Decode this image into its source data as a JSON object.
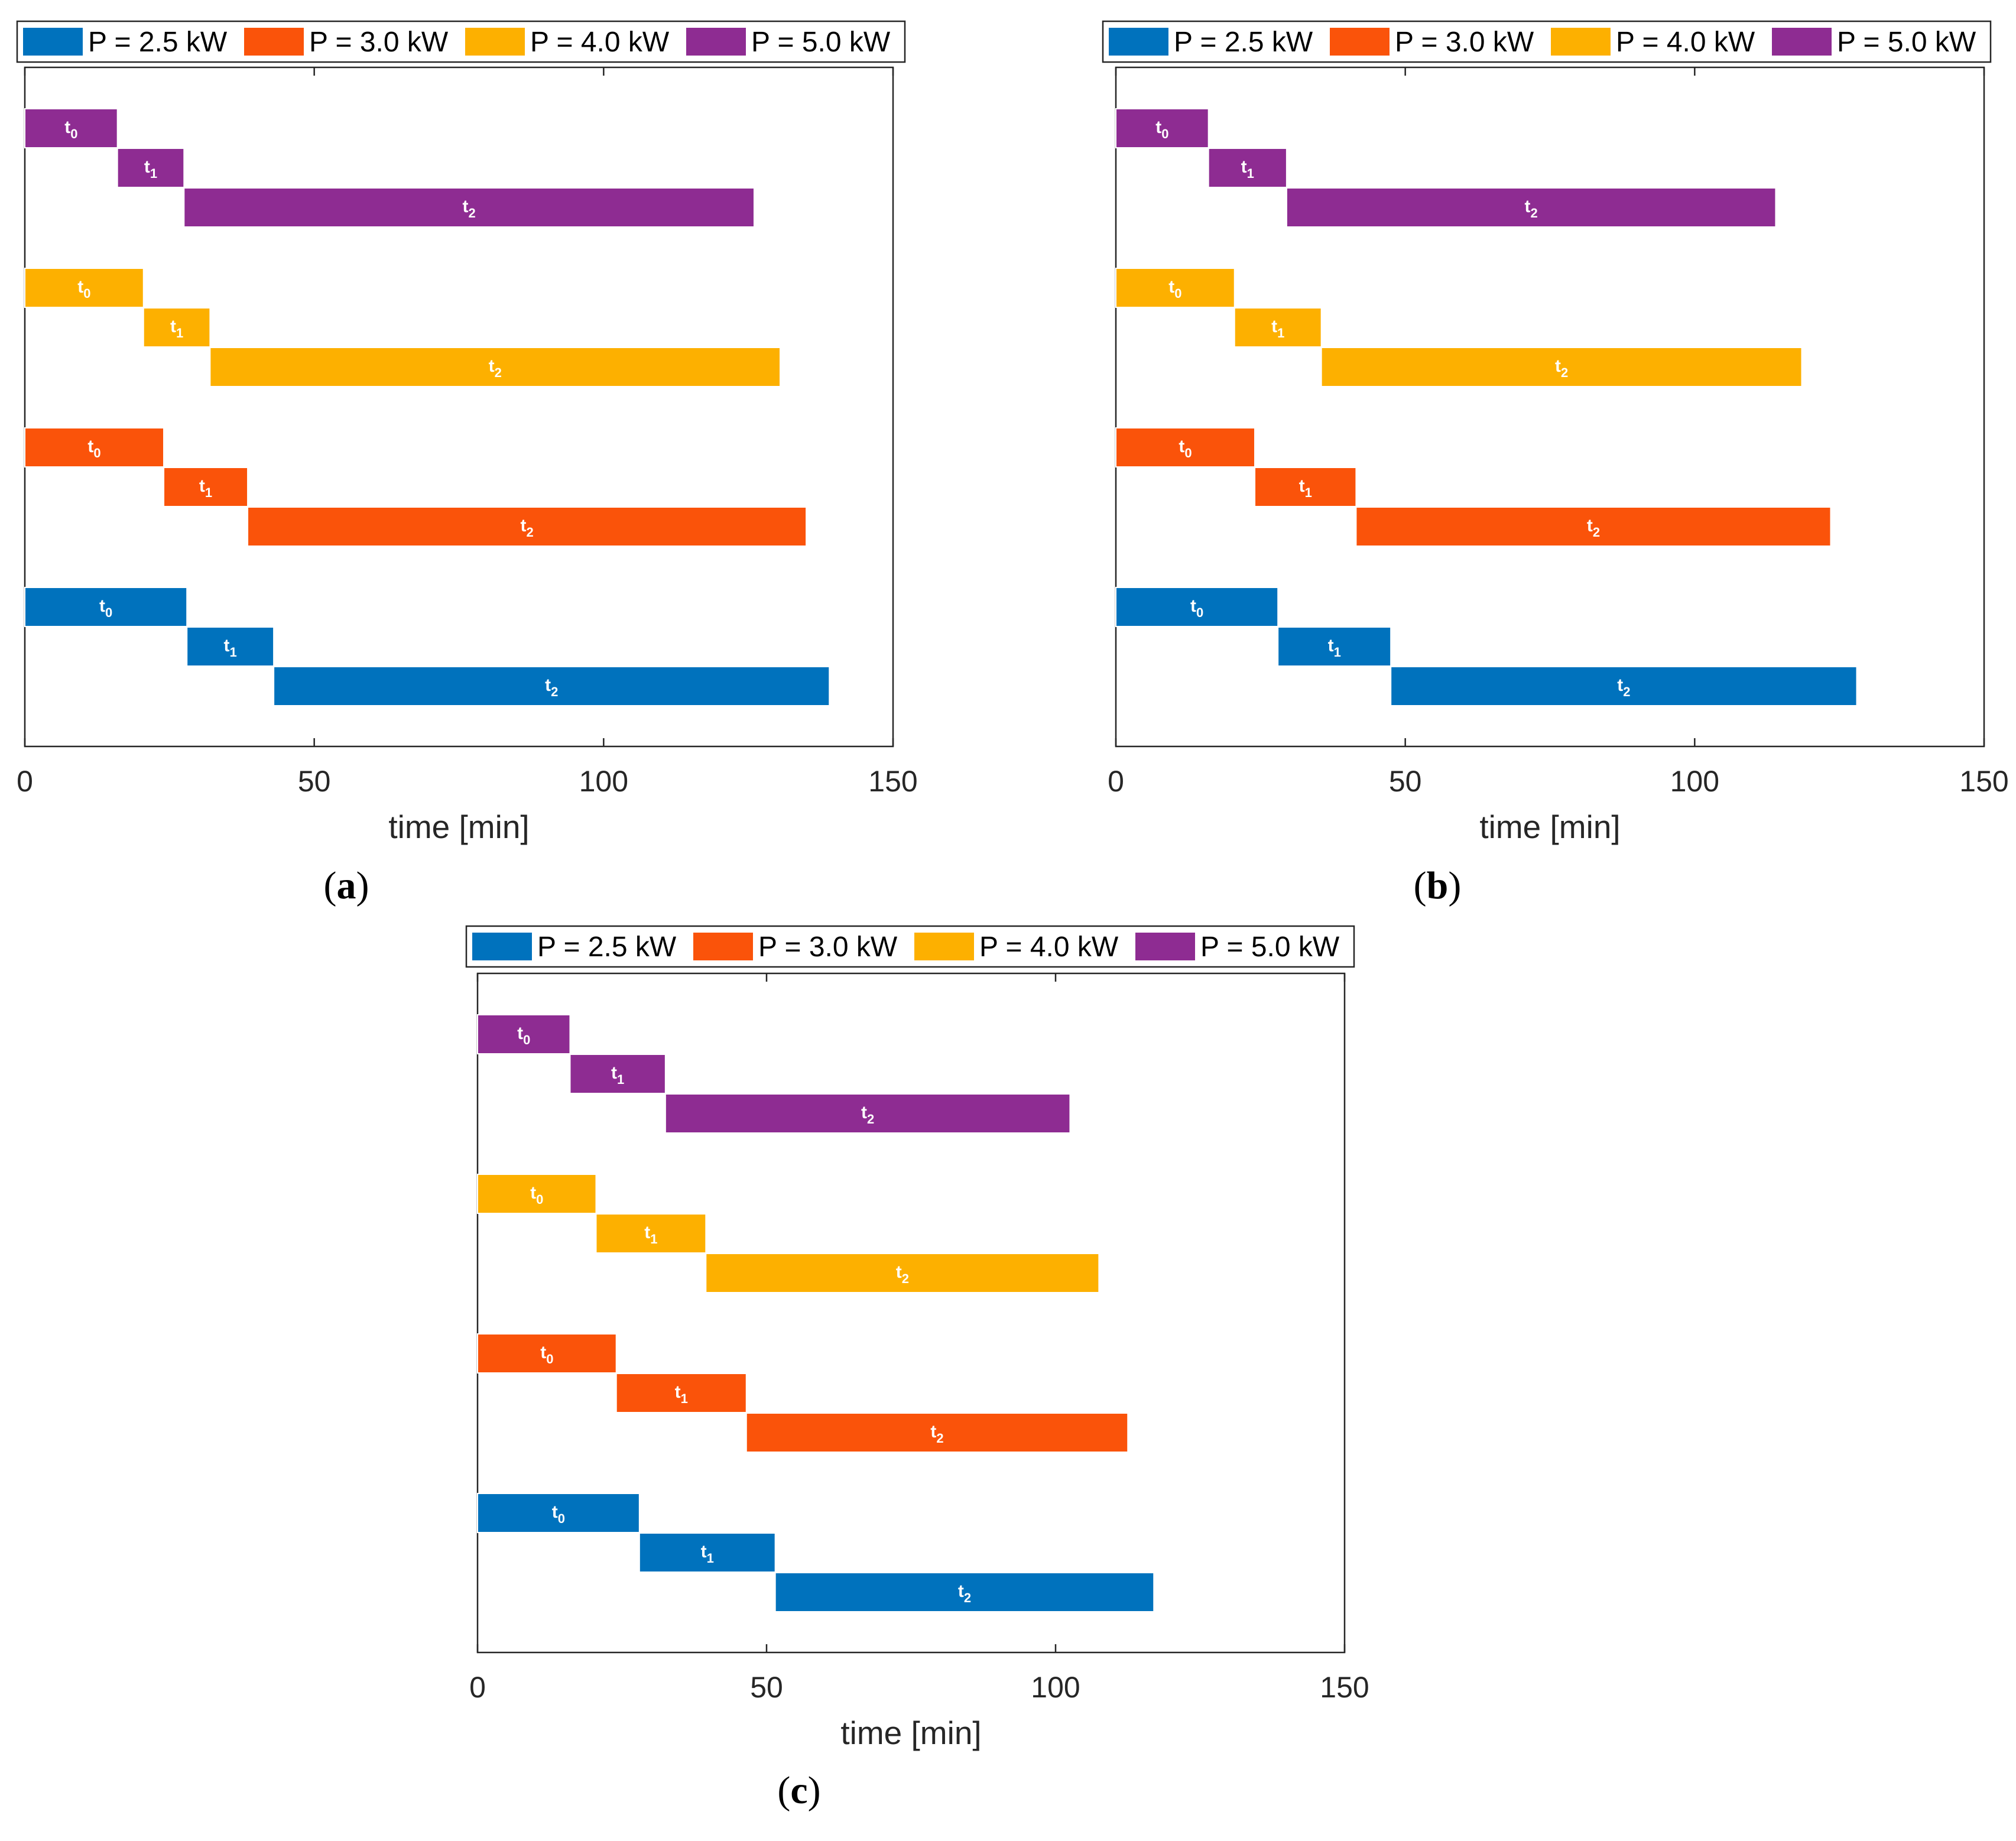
{
  "colors": {
    "P = 2.5 kW": "#0072BD",
    "P = 3.0 kW": "#FA530A",
    "P = 4.0 kW": "#FDB000",
    "P = 5.0 kW": "#8E2C92"
  },
  "chart_data": [
    {
      "type": "bar",
      "subtype": "stacked-horizontal-gantt",
      "panel_label": "a",
      "xlabel": "time [min]",
      "xlim": [
        0,
        150
      ],
      "xticks": [
        0,
        50,
        100,
        150
      ],
      "legend": [
        "P = 2.5 kW",
        "P = 3.0 kW",
        "P = 4.0 kW",
        "P = 5.0 kW"
      ],
      "legend_position": "top",
      "series": [
        {
          "name": "P = 5.0 kW",
          "phases": [
            {
              "label": "t",
              "sub": "0",
              "start": 0,
              "end": 16
            },
            {
              "label": "t",
              "sub": "1",
              "start": 16,
              "end": 27.5
            },
            {
              "label": "t",
              "sub": "2",
              "start": 27.5,
              "end": 126
            }
          ]
        },
        {
          "name": "P = 4.0 kW",
          "phases": [
            {
              "label": "t",
              "sub": "0",
              "start": 0,
              "end": 20.5
            },
            {
              "label": "t",
              "sub": "1",
              "start": 20.5,
              "end": 32
            },
            {
              "label": "t",
              "sub": "2",
              "start": 32,
              "end": 130.5
            }
          ]
        },
        {
          "name": "P = 3.0 kW",
          "phases": [
            {
              "label": "t",
              "sub": "0",
              "start": 0,
              "end": 24
            },
            {
              "label": "t",
              "sub": "1",
              "start": 24,
              "end": 38.5
            },
            {
              "label": "t",
              "sub": "2",
              "start": 38.5,
              "end": 135
            }
          ]
        },
        {
          "name": "P = 2.5 kW",
          "phases": [
            {
              "label": "t",
              "sub": "0",
              "start": 0,
              "end": 28
            },
            {
              "label": "t",
              "sub": "1",
              "start": 28,
              "end": 43
            },
            {
              "label": "t",
              "sub": "2",
              "start": 43,
              "end": 139
            }
          ]
        }
      ]
    },
    {
      "type": "bar",
      "subtype": "stacked-horizontal-gantt",
      "panel_label": "b",
      "xlabel": "time [min]",
      "xlim": [
        0,
        150
      ],
      "xticks": [
        0,
        50,
        100,
        150
      ],
      "legend": [
        "P = 2.5 kW",
        "P = 3.0 kW",
        "P = 4.0 kW",
        "P = 5.0 kW"
      ],
      "legend_position": "top",
      "series": [
        {
          "name": "P = 5.0 kW",
          "phases": [
            {
              "label": "t",
              "sub": "0",
              "start": 0,
              "end": 16
            },
            {
              "label": "t",
              "sub": "1",
              "start": 16,
              "end": 29.5
            },
            {
              "label": "t",
              "sub": "2",
              "start": 29.5,
              "end": 114
            }
          ]
        },
        {
          "name": "P = 4.0 kW",
          "phases": [
            {
              "label": "t",
              "sub": "0",
              "start": 0,
              "end": 20.5
            },
            {
              "label": "t",
              "sub": "1",
              "start": 20.5,
              "end": 35.5
            },
            {
              "label": "t",
              "sub": "2",
              "start": 35.5,
              "end": 118.5
            }
          ]
        },
        {
          "name": "P = 3.0 kW",
          "phases": [
            {
              "label": "t",
              "sub": "0",
              "start": 0,
              "end": 24
            },
            {
              "label": "t",
              "sub": "1",
              "start": 24,
              "end": 41.5
            },
            {
              "label": "t",
              "sub": "2",
              "start": 41.5,
              "end": 123.5
            }
          ]
        },
        {
          "name": "P = 2.5 kW",
          "phases": [
            {
              "label": "t",
              "sub": "0",
              "start": 0,
              "end": 28
            },
            {
              "label": "t",
              "sub": "1",
              "start": 28,
              "end": 47.5
            },
            {
              "label": "t",
              "sub": "2",
              "start": 47.5,
              "end": 128
            }
          ]
        }
      ]
    },
    {
      "type": "bar",
      "subtype": "stacked-horizontal-gantt",
      "panel_label": "c",
      "xlabel": "time [min]",
      "xlim": [
        0,
        150
      ],
      "xticks": [
        0,
        50,
        100,
        150
      ],
      "legend": [
        "P = 2.5 kW",
        "P = 3.0 kW",
        "P = 4.0 kW",
        "P = 5.0 kW"
      ],
      "legend_position": "top",
      "series": [
        {
          "name": "P = 5.0 kW",
          "phases": [
            {
              "label": "t",
              "sub": "0",
              "start": 0,
              "end": 16
            },
            {
              "label": "t",
              "sub": "1",
              "start": 16,
              "end": 32.5
            },
            {
              "label": "t",
              "sub": "2",
              "start": 32.5,
              "end": 102.5
            }
          ]
        },
        {
          "name": "P = 4.0 kW",
          "phases": [
            {
              "label": "t",
              "sub": "0",
              "start": 0,
              "end": 20.5
            },
            {
              "label": "t",
              "sub": "1",
              "start": 20.5,
              "end": 39.5
            },
            {
              "label": "t",
              "sub": "2",
              "start": 39.5,
              "end": 107.5
            }
          ]
        },
        {
          "name": "P = 3.0 kW",
          "phases": [
            {
              "label": "t",
              "sub": "0",
              "start": 0,
              "end": 24
            },
            {
              "label": "t",
              "sub": "1",
              "start": 24,
              "end": 46.5
            },
            {
              "label": "t",
              "sub": "2",
              "start": 46.5,
              "end": 112.5
            }
          ]
        },
        {
          "name": "P = 2.5 kW",
          "phases": [
            {
              "label": "t",
              "sub": "0",
              "start": 0,
              "end": 28
            },
            {
              "label": "t",
              "sub": "1",
              "start": 28,
              "end": 51.5
            },
            {
              "label": "t",
              "sub": "2",
              "start": 51.5,
              "end": 117
            }
          ]
        }
      ]
    }
  ]
}
